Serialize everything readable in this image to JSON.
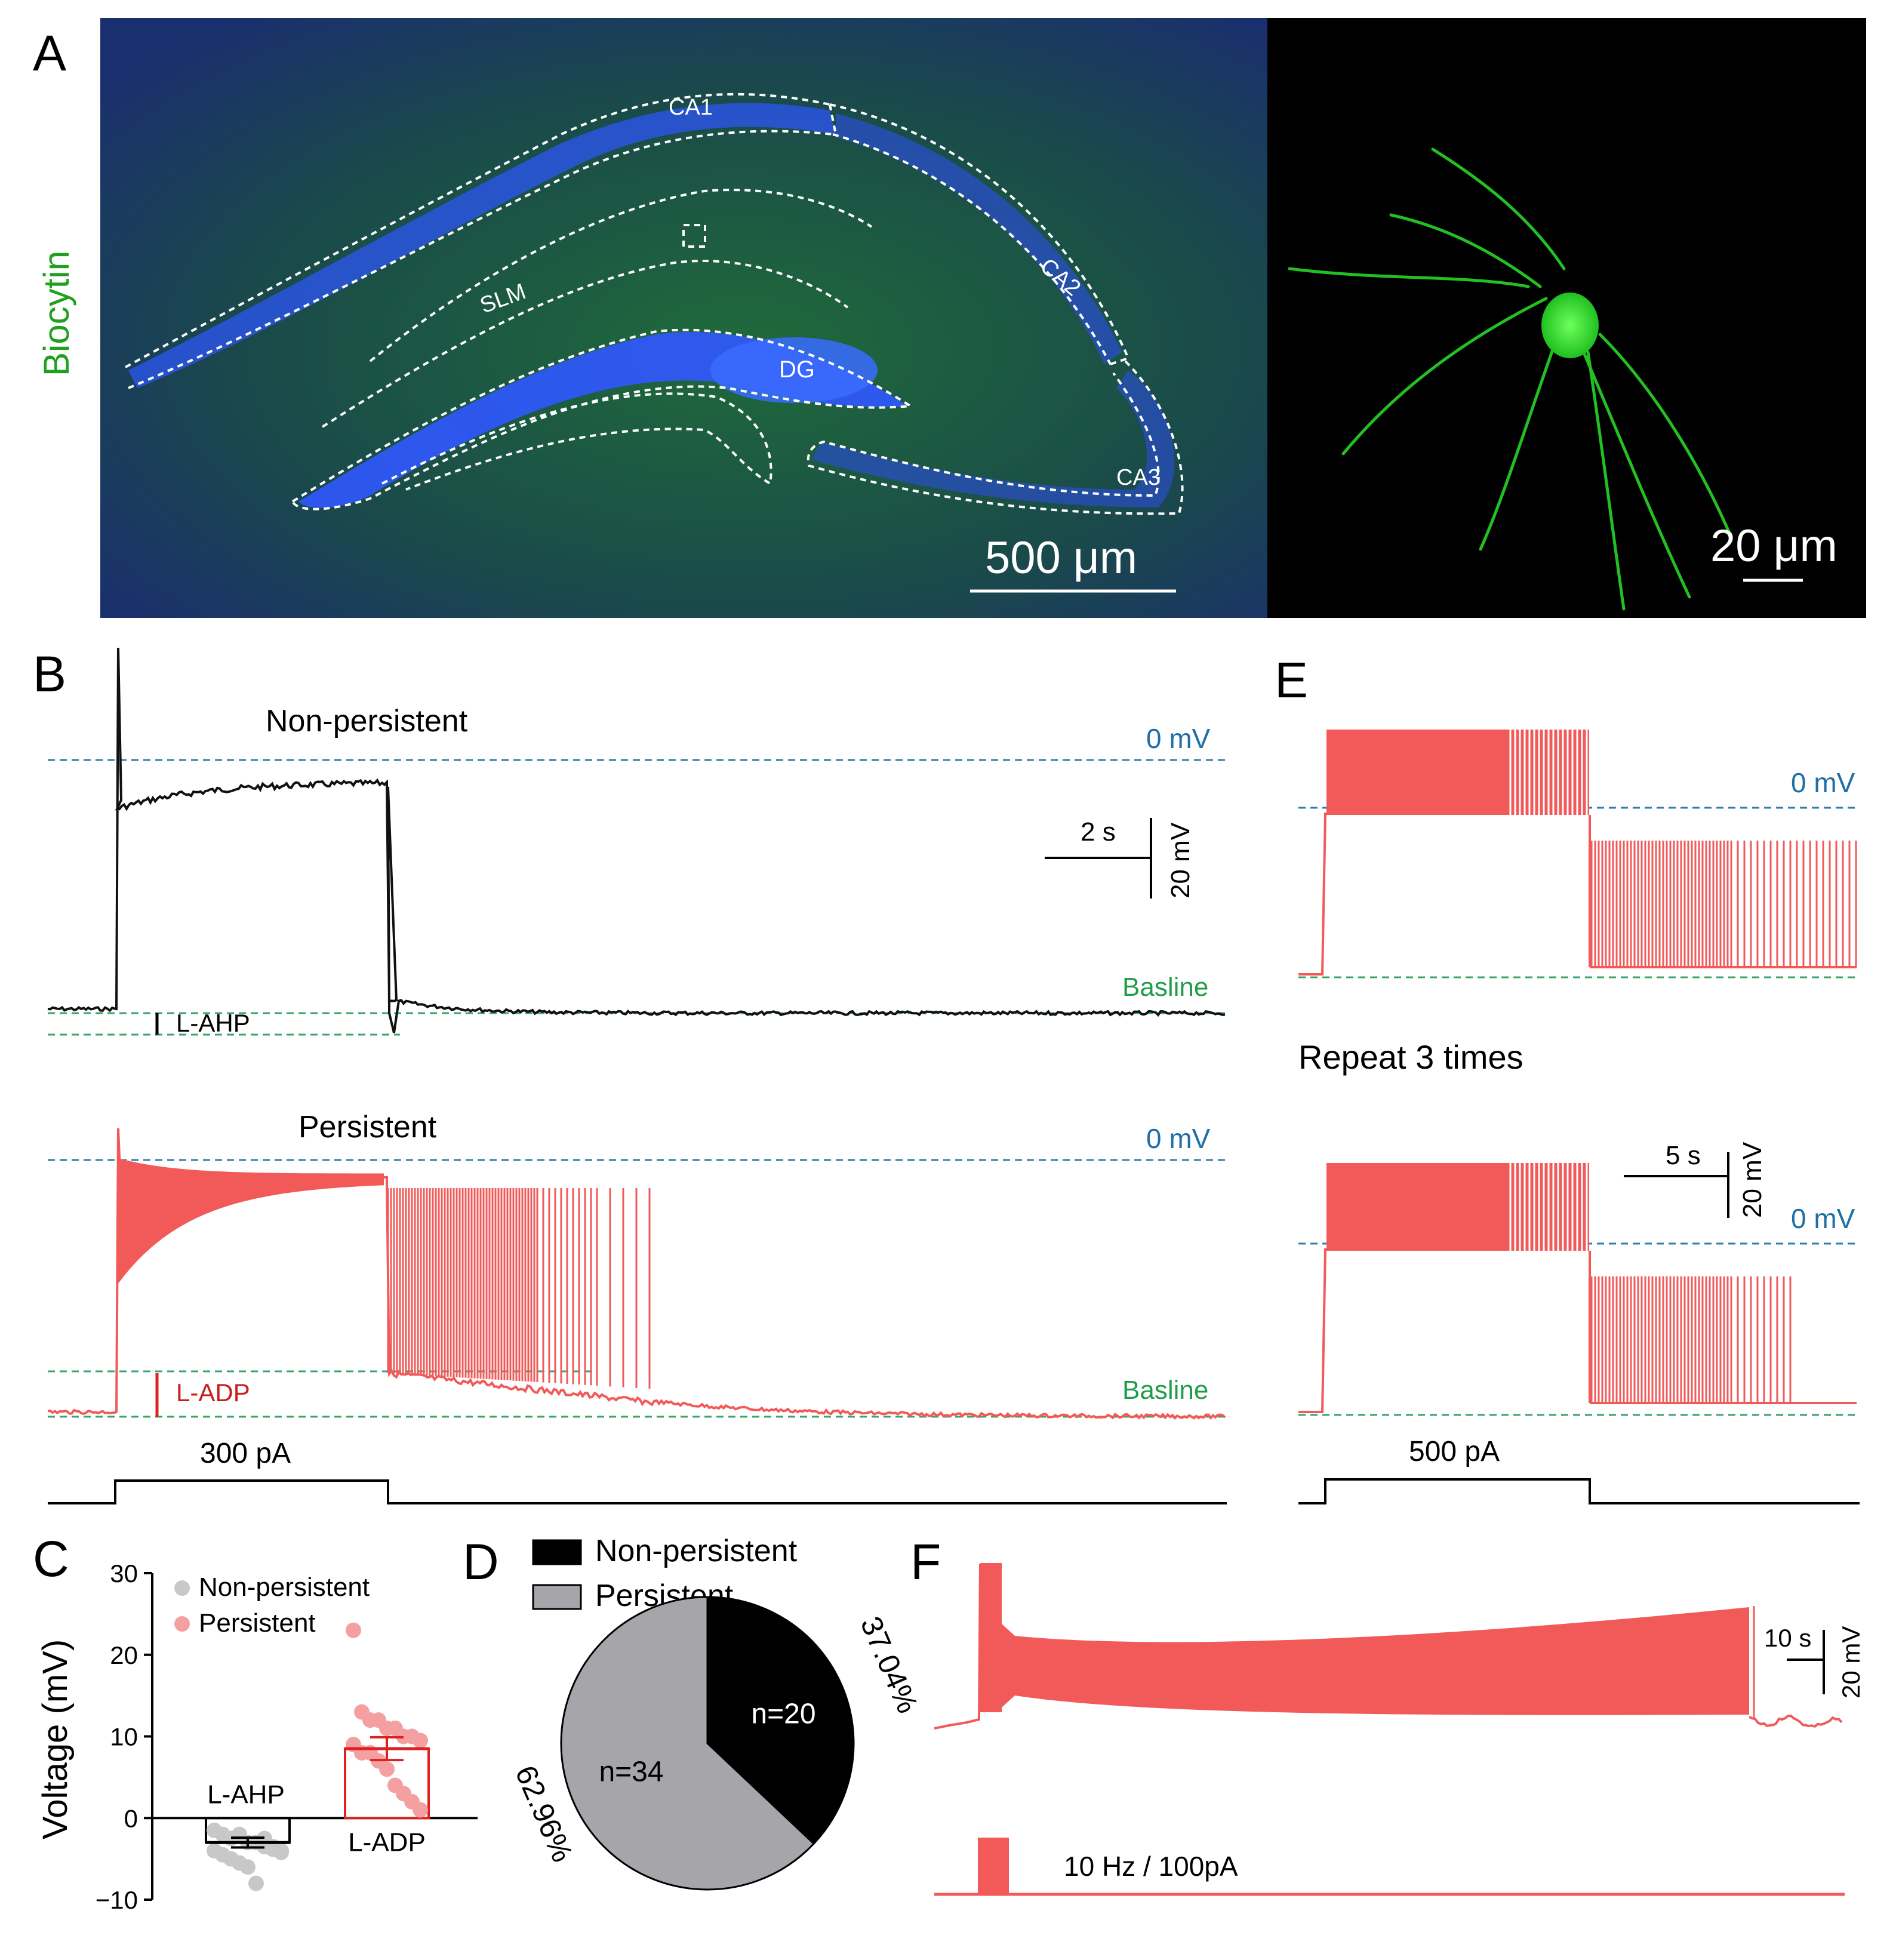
{
  "colors": {
    "trace_red": "#f25a5a",
    "trace_black": "#111111",
    "zero_line": "#2f7fa8",
    "baseline_line": "#3aa66a",
    "baseline_text": "#1f9d4a",
    "zero_text": "#1f6fa5",
    "biocytin_green": "#1fa01f",
    "bar_red": "#e02020",
    "dot_grey": "#c8c8c8",
    "dot_pink": "#f5a0a0",
    "pie_black": "#000000",
    "pie_grey": "#a6a6aa",
    "slice_bg": "#1c5a3a",
    "slice_blue": "#2a5cff"
  },
  "panel_labels": {
    "a": "A",
    "b": "B",
    "c": "C",
    "d": "D",
    "e": "E",
    "f": "F"
  },
  "panel_a": {
    "side_label": "Biocytin",
    "regions": {
      "ca1": "CA1",
      "ca2": "CA2",
      "ca3": "CA3",
      "dg": "DG",
      "slm": "SLM"
    },
    "scale_left": "500 μm",
    "scale_right": "20 μm"
  },
  "panel_b": {
    "top_title": "Non-persistent",
    "bottom_title": "Persistent",
    "zero_label": "0 mV",
    "baseline_label": "Basline",
    "lahp_label": "L-AHP",
    "ladp_label": "L-ADP",
    "scale_time": "2 s",
    "scale_voltage": "20 mV",
    "stim_label": "300 pA"
  },
  "panel_e": {
    "zero_label": "0 mV",
    "repeat_label": "Repeat 3 times",
    "scale_time": "5 s",
    "scale_voltage": "20 mV",
    "stim_label": "500 pA"
  },
  "panel_f": {
    "scale_time": "10 s",
    "scale_voltage": "20 mV",
    "stim_label": "10 Hz / 100pA"
  },
  "chart_data": [
    {
      "type": "bar",
      "panel": "C",
      "ylabel": "Voltage (mV)",
      "ylim": [
        -10,
        30
      ],
      "yticks": [
        "30",
        "20",
        "10",
        "0",
        "−10"
      ],
      "legend": [
        "Non-persistent",
        "Persistent"
      ],
      "legend_position": "top",
      "categories": [
        "L-AHP",
        "L-ADP"
      ],
      "values": [
        -3,
        8.5
      ],
      "sem": [
        0.6,
        1.4
      ],
      "points": {
        "L-AHP": [
          -1.5,
          -2,
          -2.5,
          -2,
          -3,
          -3,
          -3.5,
          -3.5,
          -4,
          -4,
          -4.5,
          -5,
          -5.5,
          -6,
          -8,
          -2.5,
          -3.8,
          -4.2
        ],
        "L-ADP": [
          23,
          13,
          12,
          12,
          11,
          11,
          10,
          10,
          9.5,
          9,
          8,
          8,
          7,
          6,
          4,
          3,
          2,
          1
        ]
      }
    },
    {
      "type": "pie",
      "panel": "D",
      "legend": [
        "Non-persistent",
        "Persistent"
      ],
      "legend_position": "top",
      "slices": [
        {
          "name": "Non-persistent",
          "count_label": "n=20",
          "percent_label": "37.04%",
          "value": 37.04
        },
        {
          "name": "Persistent",
          "count_label": "n=34",
          "percent_label": "62.96%",
          "value": 62.96
        }
      ]
    }
  ]
}
